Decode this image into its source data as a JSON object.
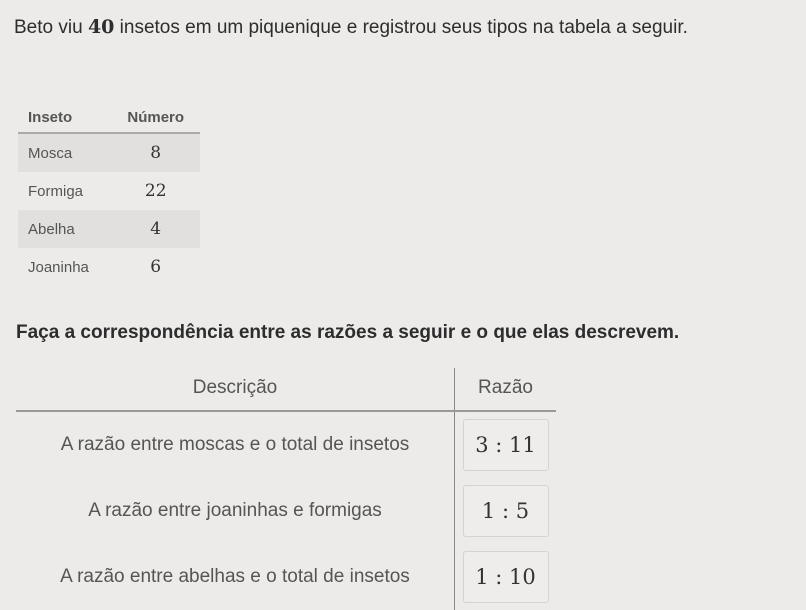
{
  "intro": {
    "before": "Beto viu ",
    "count": "40",
    "after": " insetos em um piquenique e registrou seus tipos na tabela a seguir."
  },
  "insect_table": {
    "headers": [
      "Inseto",
      "Número"
    ],
    "rows": [
      [
        "Mosca",
        "8"
      ],
      [
        "Formiga",
        "22"
      ],
      [
        "Abelha",
        "4"
      ],
      [
        "Joaninha",
        "6"
      ]
    ]
  },
  "question": "Faça a correspondência entre as razões a seguir e o que elas descrevem.",
  "match_table": {
    "headers": [
      "Descrição",
      "Razão"
    ],
    "rows": [
      {
        "description": "A razão entre moscas e o total de insetos",
        "ratio": "3 : 11"
      },
      {
        "description": "A razão entre joaninhas e formigas",
        "ratio": "1 : 5"
      },
      {
        "description": "A razão entre abelhas e o total de insetos",
        "ratio": "1 : 10"
      }
    ]
  }
}
